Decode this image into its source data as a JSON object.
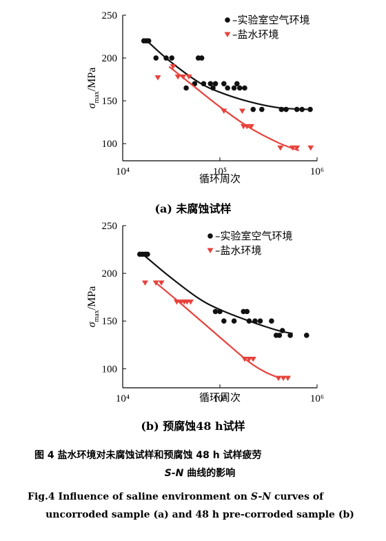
{
  "chart_data": [
    {
      "type": "scatter",
      "x_scale": "log",
      "xlim": [
        10000,
        1000000
      ],
      "ylim": [
        80,
        250
      ],
      "x_tick_values": [
        10000,
        100000,
        1000000
      ],
      "x_tick_labels": [
        "10⁴",
        "10⁵",
        "10⁶"
      ],
      "y_ticks": [
        100,
        150,
        200,
        250
      ],
      "xlabel": "循环周次",
      "ylabel_main": "σ",
      "ylabel_sub": "max",
      "ylabel_unit": "/MPa",
      "caption": "(a) 未腐蚀试样",
      "legend_position": "top-right",
      "series": [
        {
          "name": "–实验室空气环境",
          "marker": "circle",
          "color": "#111111",
          "curve_color": "#111111",
          "points": [
            [
              16500,
              220
            ],
            [
              17500,
              220
            ],
            [
              18500,
              220
            ],
            [
              22000,
              200
            ],
            [
              28000,
              200
            ],
            [
              32000,
              200
            ],
            [
              45000,
              165
            ],
            [
              55000,
              170
            ],
            [
              60000,
              200
            ],
            [
              65000,
              200
            ],
            [
              68000,
              170
            ],
            [
              80000,
              170
            ],
            [
              85000,
              165
            ],
            [
              90000,
              170
            ],
            [
              110000,
              170
            ],
            [
              120000,
              165
            ],
            [
              140000,
              165
            ],
            [
              150000,
              170
            ],
            [
              160000,
              165
            ],
            [
              180000,
              165
            ],
            [
              220000,
              140
            ],
            [
              270000,
              140
            ],
            [
              430000,
              140
            ],
            [
              480000,
              140
            ],
            [
              620000,
              140
            ],
            [
              700000,
              140
            ],
            [
              850000,
              140
            ]
          ],
          "fit": [
            [
              17000,
              222
            ],
            [
              30000,
              197
            ],
            [
              60000,
              172
            ],
            [
              100000,
              160
            ],
            [
              200000,
              149
            ],
            [
              400000,
              142
            ],
            [
              800000,
              140
            ]
          ]
        },
        {
          "name": "–盐水环境",
          "marker": "triangle-down",
          "color": "#e8413b",
          "curve_color": "#e8413b",
          "points": [
            [
              23000,
              177
            ],
            [
              33000,
              190
            ],
            [
              37000,
              178
            ],
            [
              42000,
              178
            ],
            [
              48000,
              178
            ],
            [
              110000,
              138
            ],
            [
              170000,
              138
            ],
            [
              175000,
              120
            ],
            [
              190000,
              120
            ],
            [
              210000,
              120
            ],
            [
              420000,
              95
            ],
            [
              560000,
              95
            ],
            [
              620000,
              95
            ],
            [
              860000,
              95
            ]
          ],
          "fit": [
            [
              30000,
              190
            ],
            [
              50000,
              170
            ],
            [
              100000,
              143
            ],
            [
              200000,
              119
            ],
            [
              400000,
              101
            ],
            [
              650000,
              92
            ]
          ]
        }
      ]
    },
    {
      "type": "scatter",
      "x_scale": "log",
      "xlim": [
        10000,
        1000000
      ],
      "ylim": [
        80,
        250
      ],
      "x_tick_values": [
        10000,
        100000,
        1000000
      ],
      "x_tick_labels": [
        "10⁴",
        "10⁵",
        "10⁶"
      ],
      "y_ticks": [
        100,
        150,
        200,
        250
      ],
      "xlabel": "循环周次",
      "ylabel_main": "σ",
      "ylabel_sub": "max",
      "ylabel_unit": "/MPa",
      "caption": "(b) 预腐蚀48 h试样",
      "legend_position": "top-right",
      "series": [
        {
          "name": "–实验室空气环境",
          "marker": "circle",
          "color": "#111111",
          "curve_color": "#111111",
          "points": [
            [
              15000,
              220
            ],
            [
              16000,
              220
            ],
            [
              17000,
              220
            ],
            [
              18000,
              220
            ],
            [
              90000,
              160
            ],
            [
              100000,
              160
            ],
            [
              110000,
              150
            ],
            [
              140000,
              150
            ],
            [
              175000,
              160
            ],
            [
              190000,
              160
            ],
            [
              200000,
              150
            ],
            [
              230000,
              150
            ],
            [
              260000,
              150
            ],
            [
              340000,
              150
            ],
            [
              380000,
              135
            ],
            [
              410000,
              135
            ],
            [
              440000,
              140
            ],
            [
              530000,
              135
            ],
            [
              780000,
              135
            ]
          ],
          "fit": [
            [
              17000,
              218
            ],
            [
              30000,
              197
            ],
            [
              60000,
              174
            ],
            [
              100000,
              162
            ],
            [
              200000,
              150
            ],
            [
              400000,
              140
            ],
            [
              560000,
              137
            ]
          ]
        },
        {
          "name": "–盐水环境",
          "marker": "triangle-down",
          "color": "#e8413b",
          "curve_color": "#e8413b",
          "points": [
            [
              17000,
              190
            ],
            [
              22000,
              190
            ],
            [
              25000,
              190
            ],
            [
              36000,
              170
            ],
            [
              40000,
              170
            ],
            [
              43000,
              170
            ],
            [
              46000,
              170
            ],
            [
              50000,
              170
            ],
            [
              180000,
              110
            ],
            [
              200000,
              110
            ],
            [
              220000,
              110
            ],
            [
              400000,
              90
            ],
            [
              450000,
              90
            ],
            [
              500000,
              90
            ]
          ],
          "fit": [
            [
              22000,
              190
            ],
            [
              40000,
              168
            ],
            [
              100000,
              133
            ],
            [
              200000,
              107
            ],
            [
              300000,
              96
            ],
            [
              420000,
              90
            ]
          ]
        }
      ]
    }
  ],
  "figure_caption_cn": {
    "line1": "图 4    盐水环境对未腐蚀试样和预腐蚀 48 h 试样疲劳",
    "line2_sn": "S-N",
    "line2_rest": " 曲线的影响"
  },
  "figure_caption_en": {
    "line1_a": "Fig.4    Influence of saline environment on ",
    "line1_sn": "S-N",
    "line1_b": " curves of",
    "line2": "uncorroded sample (a) and 48 h pre-corroded sample (b)"
  }
}
